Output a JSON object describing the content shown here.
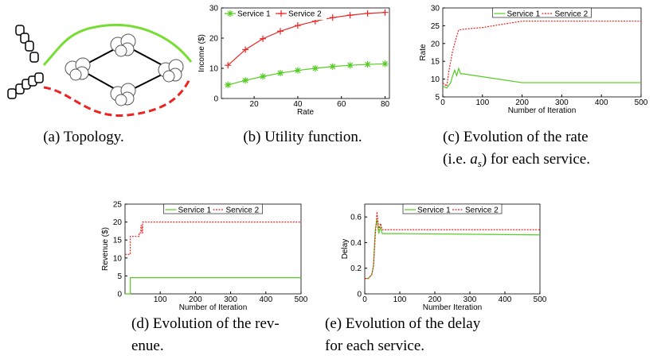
{
  "chart_data": [
    {
      "type": "diagram",
      "caption": "(a) Topology."
    },
    {
      "type": "line",
      "caption": "(b) Utility function.",
      "xlabel": "Rate",
      "ylabel": "Income ($)",
      "xlim": [
        5,
        82
      ],
      "xticks": [
        20,
        40,
        60,
        80
      ],
      "ylim": [
        0,
        30
      ],
      "yticks": [
        0,
        10,
        20,
        30
      ],
      "legend": "upper left",
      "series": [
        {
          "name": "Service 1",
          "color": "#55cc22",
          "linestyle": "solid",
          "marker": "*",
          "x": [
            8,
            16,
            24,
            32,
            40,
            48,
            56,
            64,
            72,
            80
          ],
          "values": [
            4.5,
            6,
            7.3,
            8.4,
            9.3,
            10,
            10.6,
            11,
            11.3,
            11.5
          ]
        },
        {
          "name": "Service 2",
          "color": "#ee2222",
          "linestyle": "solid",
          "marker": "+",
          "x": [
            8,
            16,
            24,
            32,
            40,
            48,
            56,
            64,
            72,
            80
          ],
          "values": [
            11,
            16.2,
            19.8,
            22.3,
            24.2,
            25.6,
            26.8,
            27.6,
            28.2,
            28.5
          ]
        }
      ]
    },
    {
      "type": "line",
      "caption": "(c) Evolution of the rate",
      "caption2": [
        "(i.e. ",
        "a",
        "s",
        ") for each service."
      ],
      "xlabel": "Number of Iteration",
      "ylabel": "Rate",
      "xlim": [
        0,
        500
      ],
      "xticks": [
        0,
        100,
        200,
        300,
        400,
        500
      ],
      "ylim": [
        5,
        30
      ],
      "yticks": [
        5,
        10,
        15,
        20,
        25,
        30
      ],
      "legend": "upper center",
      "series": [
        {
          "name": "Service 1",
          "color": "#55cc22",
          "linestyle": "solid",
          "x": [
            0,
            10,
            20,
            25,
            30,
            35,
            40,
            45,
            50,
            200,
            500
          ],
          "values": [
            8,
            7.5,
            9,
            11,
            12.5,
            11,
            13,
            11.5,
            11.5,
            9,
            9
          ]
        },
        {
          "name": "Service 2",
          "color": "#ee2222",
          "linestyle": "dotted",
          "x": [
            0,
            10,
            15,
            20,
            25,
            30,
            35,
            40,
            50,
            100,
            200,
            500
          ],
          "values": [
            9,
            8,
            12,
            15,
            18,
            20,
            22,
            23.8,
            24,
            24.5,
            26.3,
            26.3
          ]
        }
      ]
    },
    {
      "type": "line",
      "caption": "(d) Evolution of the rev-",
      "caption2": [
        "enue."
      ],
      "xlabel": "Number of Iteration",
      "ylabel": "Revenue ($)",
      "xlim": [
        0,
        500
      ],
      "xticks": [
        100,
        200,
        300,
        400,
        500
      ],
      "ylim": [
        0,
        25
      ],
      "yticks": [
        0,
        5,
        10,
        15,
        20,
        25
      ],
      "legend": "upper center",
      "series": [
        {
          "name": "Service 1",
          "color": "#55cc22",
          "linestyle": "solid",
          "x": [
            0,
            15,
            15,
            500
          ],
          "values": [
            0,
            0,
            4.5,
            4.5
          ]
        },
        {
          "name": "Service 2",
          "color": "#ee2222",
          "linestyle": "dotted",
          "x": [
            0,
            15,
            15,
            40,
            40,
            45,
            45,
            48,
            48,
            50,
            50,
            500
          ],
          "values": [
            11,
            11,
            16,
            16,
            17,
            17,
            19,
            19,
            17,
            17,
            20,
            20
          ]
        }
      ]
    },
    {
      "type": "line",
      "caption": "(e) Evolution of the delay",
      "caption2": [
        "for each service."
      ],
      "xlabel": "Number Iteration",
      "ylabel": "Delay",
      "xlim": [
        0,
        500
      ],
      "xticks": [
        0,
        100,
        200,
        300,
        400,
        500
      ],
      "ylim": [
        0,
        0.7
      ],
      "yticks": [
        0,
        0.2,
        0.4,
        0.6
      ],
      "legend": "upper center",
      "series": [
        {
          "name": "Service 1",
          "color": "#55cc22",
          "linestyle": "solid",
          "x": [
            0,
            10,
            20,
            25,
            30,
            35,
            40,
            45,
            50,
            60,
            100,
            500
          ],
          "values": [
            0.12,
            0.12,
            0.15,
            0.22,
            0.5,
            0.58,
            0.47,
            0.52,
            0.47,
            0.47,
            0.47,
            0.46
          ]
        },
        {
          "name": "Service 2",
          "color": "#ee2222",
          "linestyle": "dotted",
          "x": [
            0,
            10,
            20,
            25,
            30,
            35,
            40,
            45,
            50,
            100,
            500
          ],
          "values": [
            0.12,
            0.12,
            0.15,
            0.22,
            0.45,
            0.64,
            0.5,
            0.55,
            0.5,
            0.5,
            0.5
          ]
        }
      ]
    }
  ]
}
